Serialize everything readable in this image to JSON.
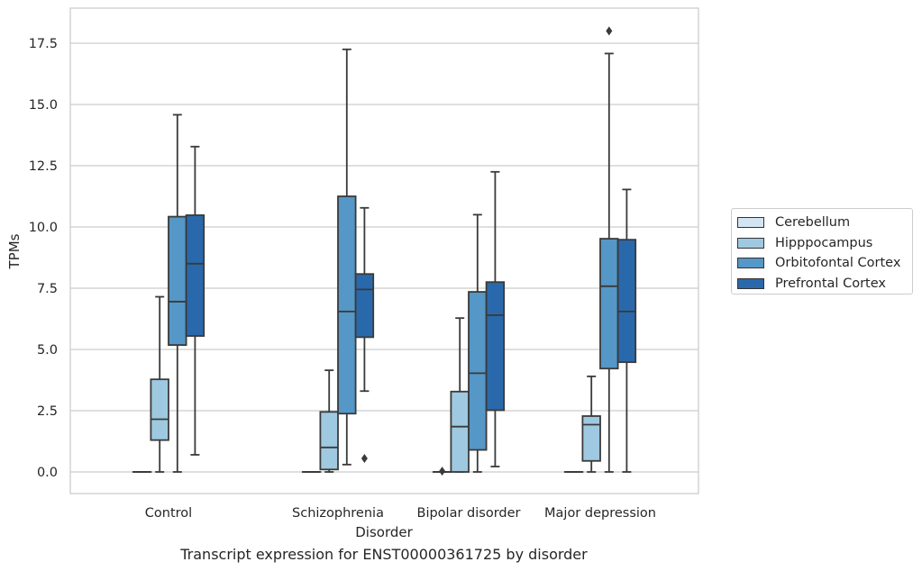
{
  "caption": "Transcript expression for ENST00000361725 by disorder",
  "chart_data": {
    "type": "box",
    "xlabel": "Disorder",
    "ylabel": "TPMs",
    "ylim": [
      -0.9,
      18.9
    ],
    "yticks": [
      0.0,
      2.5,
      5.0,
      7.5,
      10.0,
      12.5,
      15.0,
      17.5
    ],
    "ytick_labels": [
      "0.0",
      "2.5",
      "5.0",
      "7.5",
      "10.0",
      "12.5",
      "15.0",
      "17.5"
    ],
    "grid": "horizontal",
    "legend_position": "right",
    "categories": [
      "Control",
      "Schizophrenia",
      "Bipolar disorder",
      "Major depression"
    ],
    "series": [
      {
        "name": "Cerebellum",
        "color": "#d3e4f3",
        "boxes": [
          {
            "whislo": 0.0,
            "q1": 0.0,
            "med": 0.0,
            "q3": 0.0,
            "whishi": 0.0,
            "fliers": []
          },
          {
            "whislo": 0.0,
            "q1": 0.0,
            "med": 0.0,
            "q3": 0.0,
            "whishi": 0.0,
            "fliers": []
          },
          {
            "whislo": 0.0,
            "q1": 0.0,
            "med": 0.0,
            "q3": 0.0,
            "whishi": 0.0,
            "fliers": [
              0.03
            ]
          },
          {
            "whislo": 0.0,
            "q1": 0.0,
            "med": 0.0,
            "q3": 0.0,
            "whishi": 0.0,
            "fliers": []
          }
        ]
      },
      {
        "name": "Hipppocampus",
        "color": "#9fc9e0",
        "boxes": [
          {
            "whislo": 0.0,
            "q1": 1.3,
            "med": 2.15,
            "q3": 3.78,
            "whishi": 7.15,
            "fliers": []
          },
          {
            "whislo": 0.0,
            "q1": 0.1,
            "med": 1.0,
            "q3": 2.45,
            "whishi": 4.15,
            "fliers": []
          },
          {
            "whislo": 0.0,
            "q1": 0.0,
            "med": 1.85,
            "q3": 3.28,
            "whishi": 6.28,
            "fliers": []
          },
          {
            "whislo": 0.0,
            "q1": 0.45,
            "med": 1.93,
            "q3": 2.28,
            "whishi": 3.9,
            "fliers": []
          }
        ]
      },
      {
        "name": "Orbitofontal Cortex",
        "color": "#5597c6",
        "boxes": [
          {
            "whislo": 0.0,
            "q1": 5.18,
            "med": 6.95,
            "q3": 10.42,
            "whishi": 14.58,
            "fliers": []
          },
          {
            "whislo": 0.3,
            "q1": 2.38,
            "med": 6.55,
            "q3": 11.25,
            "whishi": 17.25,
            "fliers": []
          },
          {
            "whislo": 0.0,
            "q1": 0.9,
            "med": 4.03,
            "q3": 7.35,
            "whishi": 10.5,
            "fliers": []
          },
          {
            "whislo": 0.0,
            "q1": 4.22,
            "med": 7.58,
            "q3": 9.52,
            "whishi": 17.08,
            "fliers": [
              18.0
            ]
          }
        ]
      },
      {
        "name": "Prefrontal Cortex",
        "color": "#2969ab",
        "boxes": [
          {
            "whislo": 0.7,
            "q1": 5.55,
            "med": 8.5,
            "q3": 10.48,
            "whishi": 13.28,
            "fliers": []
          },
          {
            "whislo": 3.3,
            "q1": 5.5,
            "med": 7.45,
            "q3": 8.08,
            "whishi": 10.78,
            "fliers": [
              0.55
            ]
          },
          {
            "whislo": 0.22,
            "q1": 2.52,
            "med": 6.4,
            "q3": 7.75,
            "whishi": 12.25,
            "fliers": []
          },
          {
            "whislo": 0.0,
            "q1": 4.48,
            "med": 6.55,
            "q3": 9.48,
            "whishi": 11.53,
            "fliers": []
          }
        ]
      }
    ]
  }
}
